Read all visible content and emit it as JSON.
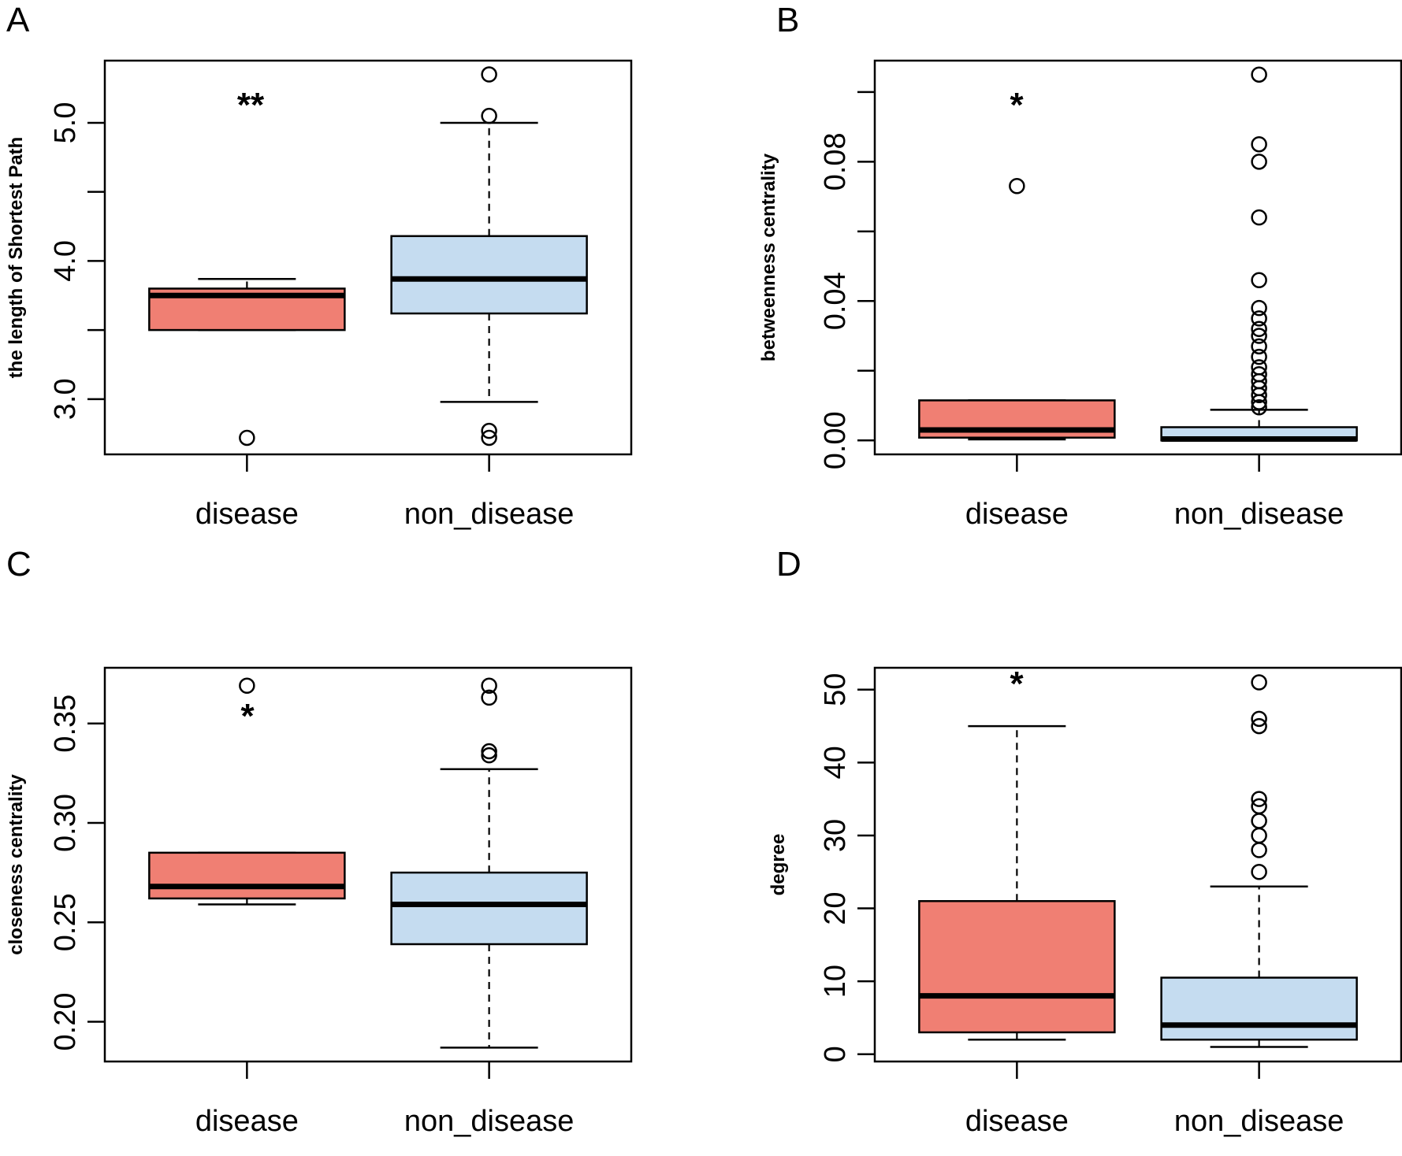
{
  "colors": {
    "disease": "#f07f73",
    "non_disease": "#c5dcf0",
    "stroke": "#000000"
  },
  "chart_data": [
    {
      "panel": "A",
      "type": "box",
      "categories": [
        "disease",
        "non_disease"
      ],
      "ylabel": "the length of Shortest  Path",
      "ylim": [
        2.6,
        5.45
      ],
      "yticks": [
        3.0,
        3.5,
        4.0,
        4.5,
        5.0
      ],
      "ytick_labels": [
        "3.0",
        "",
        "4.0",
        "",
        "5.0"
      ],
      "boxes": [
        {
          "category": "disease",
          "whisker_low": 3.5,
          "q1": 3.5,
          "median": 3.75,
          "q3": 3.8,
          "whisker_high": 3.87,
          "outliers": [
            2.72
          ]
        },
        {
          "category": "non_disease",
          "whisker_low": 2.98,
          "q1": 3.62,
          "median": 3.87,
          "q3": 4.18,
          "whisker_high": 5.0,
          "outliers": [
            5.05,
            5.35,
            2.72,
            2.77
          ]
        }
      ],
      "significance": "**"
    },
    {
      "panel": "B",
      "type": "box",
      "categories": [
        "disease",
        "non_disease"
      ],
      "ylabel": "betweenness centrality",
      "ylim": [
        -0.004,
        0.109
      ],
      "yticks": [
        0.0,
        0.02,
        0.04,
        0.06,
        0.08,
        0.1
      ],
      "ytick_labels": [
        "0.00",
        "",
        "0.04",
        "",
        "0.08",
        ""
      ],
      "boxes": [
        {
          "category": "disease",
          "whisker_low": 0.0003,
          "q1": 0.0008,
          "median": 0.003,
          "q3": 0.0115,
          "whisker_high": 0.0115,
          "outliers": [
            0.073
          ]
        },
        {
          "category": "non_disease",
          "whisker_low": 0.0,
          "q1": 0.0,
          "median": 0.0004,
          "q3": 0.0038,
          "whisker_high": 0.0088,
          "outliers": [
            0.0095,
            0.011,
            0.013,
            0.015,
            0.017,
            0.019,
            0.021,
            0.024,
            0.027,
            0.03,
            0.032,
            0.035,
            0.038,
            0.046,
            0.064,
            0.08,
            0.085,
            0.105
          ]
        }
      ],
      "significance": "*"
    },
    {
      "panel": "C",
      "type": "box",
      "categories": [
        "disease",
        "non_disease"
      ],
      "ylabel": "closeness centrality",
      "ylim": [
        0.18,
        0.378
      ],
      "yticks": [
        0.2,
        0.25,
        0.3,
        0.35
      ],
      "ytick_labels": [
        "0.20",
        "0.25",
        "0.30",
        "0.35"
      ],
      "boxes": [
        {
          "category": "disease",
          "whisker_low": 0.259,
          "q1": 0.262,
          "median": 0.268,
          "q3": 0.285,
          "whisker_high": 0.285,
          "outliers": [
            0.369
          ]
        },
        {
          "category": "non_disease",
          "whisker_low": 0.187,
          "q1": 0.239,
          "median": 0.259,
          "q3": 0.275,
          "whisker_high": 0.327,
          "outliers": [
            0.334,
            0.336,
            0.363,
            0.369
          ]
        }
      ],
      "significance": "*"
    },
    {
      "panel": "D",
      "type": "box",
      "categories": [
        "disease",
        "non_disease"
      ],
      "ylabel": "degree",
      "ylim": [
        -1,
        53
      ],
      "yticks": [
        0,
        10,
        20,
        30,
        40,
        50
      ],
      "ytick_labels": [
        "0",
        "10",
        "20",
        "30",
        "40",
        "50"
      ],
      "boxes": [
        {
          "category": "disease",
          "whisker_low": 2,
          "q1": 3,
          "median": 8,
          "q3": 21,
          "whisker_high": 45,
          "outliers": []
        },
        {
          "category": "non_disease",
          "whisker_low": 1,
          "q1": 2,
          "median": 4,
          "q3": 10.5,
          "whisker_high": 23,
          "outliers": [
            25,
            28,
            30,
            32,
            34,
            35,
            45,
            46,
            51
          ]
        }
      ],
      "significance": "*"
    }
  ]
}
